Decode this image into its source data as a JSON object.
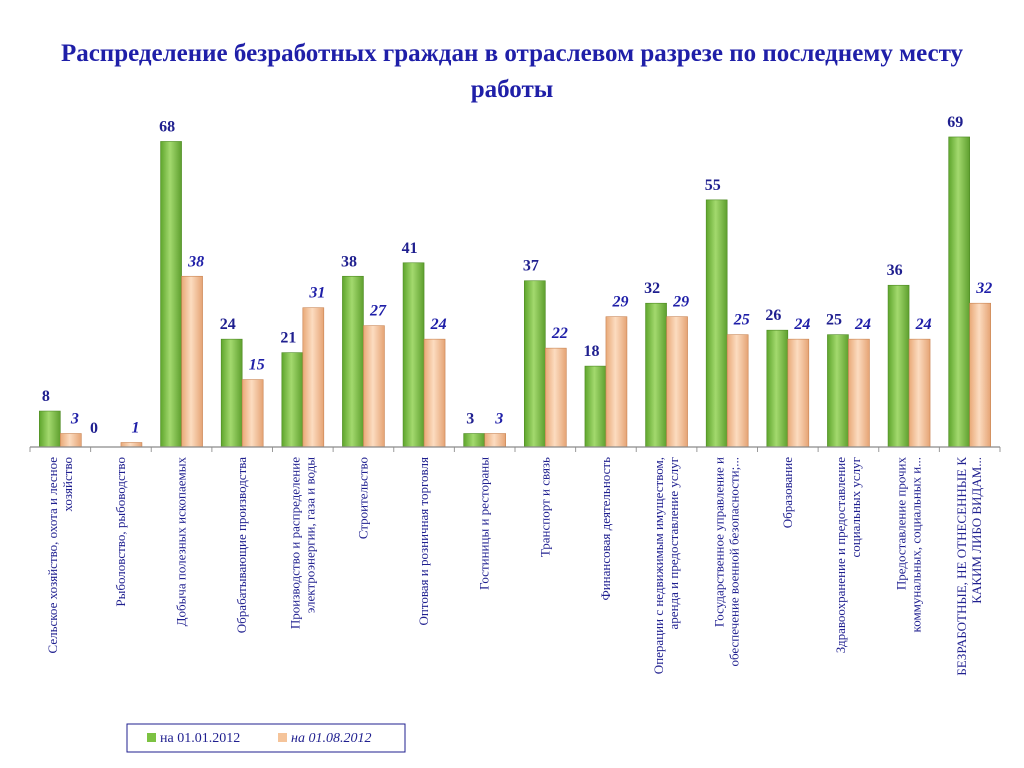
{
  "chart_data": {
    "type": "bar",
    "title": "Распределение безработных граждан в отраслевом разрезе по последнему месту работы",
    "categories": [
      [
        "Сельское хозяйство, охота и лесное",
        "хозяйство"
      ],
      [
        "Рыболовство, рыбоводство"
      ],
      [
        "Добыча полезных ископаемых"
      ],
      [
        "Обрабатывающие производства"
      ],
      [
        "Производство и распределение",
        "электроэнергии, газа и воды"
      ],
      [
        "Строительство"
      ],
      [
        "Оптовая и розничная торговля"
      ],
      [
        "Гостиницы и рестораны"
      ],
      [
        "Транспорт и связь"
      ],
      [
        "Финансовая деятельность"
      ],
      [
        "Операции с недвижимым имуществом,",
        "аренда и предоставление услуг"
      ],
      [
        "Государственное управление и",
        "обеспечение военной безопасности;..."
      ],
      [
        "Образование"
      ],
      [
        "Здравоохранение и предоставление",
        "социальных услуг"
      ],
      [
        "Предоставление прочих",
        "коммунальных, социальных и..."
      ],
      [
        "БЕЗРАБОТНЫЕ, НЕ ОТНЕСЕННЫЕ К",
        "КАКИМ ЛИБО ВИДАМ..."
      ]
    ],
    "series": [
      {
        "name": "на 01.01.2012",
        "color": "#7cc242",
        "values": [
          8,
          0,
          68,
          24,
          21,
          38,
          41,
          3,
          37,
          18,
          32,
          55,
          26,
          25,
          36,
          69
        ]
      },
      {
        "name": "на 01.08.2012",
        "color": "#f5c49a",
        "values": [
          3,
          1,
          38,
          15,
          31,
          27,
          24,
          3,
          22,
          29,
          29,
          25,
          24,
          24,
          24,
          32
        ]
      }
    ],
    "ylim": [
      0,
      75
    ],
    "grid": false,
    "legend": "bottom-center"
  }
}
